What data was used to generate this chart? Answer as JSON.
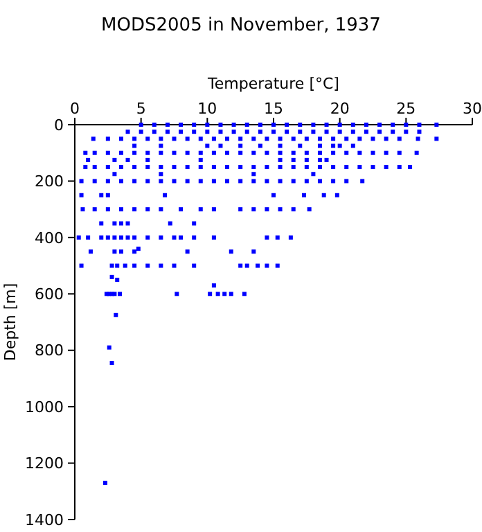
{
  "chart_data": {
    "type": "scatter",
    "title": "MODS2005 in November, 1937",
    "xlabel": "Temperature [°C]",
    "ylabel": "Depth [m]",
    "xlim": [
      0,
      30
    ],
    "xticks": [
      0,
      5,
      10,
      15,
      20,
      25,
      30
    ],
    "ylim": [
      1400,
      0
    ],
    "yticks": [
      0,
      200,
      400,
      600,
      800,
      1000,
      1200,
      1400
    ],
    "grid": false,
    "marker": "square",
    "series": [
      {
        "color": "#0000ff",
        "x": [
          5,
          6,
          7,
          8,
          9,
          10,
          11,
          12,
          13,
          14,
          15,
          16,
          17,
          18,
          19,
          20,
          21,
          22,
          23,
          24,
          25,
          26,
          27.3,
          4,
          5,
          6,
          7,
          8,
          9,
          10,
          11,
          12,
          13,
          14,
          15,
          16,
          17,
          18,
          19,
          20,
          21,
          22,
          23,
          24,
          25,
          26,
          1.4,
          2.5,
          3.5,
          4.5,
          5.5,
          6.5,
          7.5,
          8.5,
          9.5,
          10.5,
          11.5,
          12.5,
          13.5,
          14.5,
          15.5,
          16.5,
          17.5,
          18.5,
          19.5,
          20.5,
          21.5,
          22.5,
          23.5,
          24.5,
          25.9,
          27.3,
          4.5,
          6.5,
          10,
          11,
          12.5,
          14,
          15.5,
          17,
          18.5,
          19.5,
          20,
          21,
          0.8,
          1.5,
          2.5,
          3.5,
          4.5,
          5.5,
          6.5,
          7.5,
          8.5,
          9.5,
          10.5,
          11.5,
          12.5,
          13.5,
          14.5,
          15.5,
          16.5,
          17.5,
          18.5,
          19.5,
          20.5,
          21.5,
          22.5,
          23.5,
          24.5,
          25.8,
          1,
          3,
          4,
          5.5,
          9.5,
          15.5,
          16.5,
          17.5,
          18.5,
          19,
          0.8,
          1.5,
          2.5,
          3.5,
          4.5,
          5.5,
          6.5,
          7.5,
          8.5,
          9.5,
          10.5,
          11.5,
          12.5,
          13.5,
          14.5,
          15.5,
          16.5,
          17.5,
          18.5,
          19.5,
          20.5,
          21.5,
          22.5,
          23.5,
          24.5,
          25.3,
          3,
          6.5,
          13.5,
          18,
          0.5,
          1.5,
          2.5,
          3.5,
          4.5,
          5.5,
          6.5,
          7.5,
          8.5,
          9.5,
          10.5,
          11.5,
          12.5,
          13.5,
          14.5,
          15.5,
          16.5,
          17.5,
          18.5,
          19.5,
          20.5,
          21.7,
          0.5,
          2,
          2.5,
          6.8,
          15,
          17.3,
          18.8,
          19.8,
          0.6,
          1.5,
          2.5,
          3.5,
          4.5,
          5.5,
          6.5,
          8,
          9.5,
          10.5,
          12.5,
          13.5,
          14.5,
          15.5,
          16.5,
          17.7,
          2,
          3,
          3.5,
          4,
          7.2,
          9,
          0.3,
          1,
          2,
          2.5,
          3,
          3.5,
          4,
          4.5,
          5.5,
          6.5,
          7.5,
          8,
          9,
          10.5,
          14.5,
          15.3,
          16.3,
          1.2,
          3,
          3.5,
          4.5,
          8.5,
          11.8,
          13.5,
          0.5,
          2.8,
          3.2,
          3.8,
          4.5,
          5.5,
          6.5,
          7.5,
          9,
          12.5,
          13,
          13.8,
          14.5,
          15.3,
          2.8,
          3.2,
          4.8,
          10.5,
          2.4,
          2.6,
          2.8,
          3,
          3.4,
          7.7,
          10.2,
          10.8,
          11.3,
          11.8,
          12.8,
          3.1,
          2.6,
          2.8,
          2.3
        ],
        "values": [
          0,
          0,
          0,
          0,
          0,
          0,
          0,
          0,
          0,
          0,
          0,
          0,
          0,
          0,
          0,
          0,
          0,
          0,
          0,
          0,
          0,
          0,
          0,
          25,
          25,
          25,
          25,
          25,
          25,
          25,
          25,
          25,
          25,
          25,
          25,
          25,
          25,
          25,
          25,
          25,
          25,
          25,
          25,
          25,
          25,
          25,
          50,
          50,
          50,
          50,
          50,
          50,
          50,
          50,
          50,
          50,
          50,
          50,
          50,
          50,
          50,
          50,
          50,
          50,
          50,
          50,
          50,
          50,
          50,
          50,
          50,
          50,
          75,
          75,
          75,
          75,
          75,
          75,
          75,
          75,
          75,
          75,
          75,
          75,
          100,
          100,
          100,
          100,
          100,
          100,
          100,
          100,
          100,
          100,
          100,
          100,
          100,
          100,
          100,
          100,
          100,
          100,
          100,
          100,
          100,
          100,
          100,
          100,
          100,
          100,
          125,
          125,
          125,
          125,
          125,
          125,
          125,
          125,
          125,
          125,
          150,
          150,
          150,
          150,
          150,
          150,
          150,
          150,
          150,
          150,
          150,
          150,
          150,
          150,
          150,
          150,
          150,
          150,
          150,
          150,
          150,
          150,
          150,
          150,
          150,
          150,
          175,
          175,
          175,
          175,
          200,
          200,
          200,
          200,
          200,
          200,
          200,
          200,
          200,
          200,
          200,
          200,
          200,
          200,
          200,
          200,
          200,
          200,
          200,
          200,
          200,
          200,
          250,
          250,
          250,
          250,
          250,
          250,
          250,
          250,
          300,
          300,
          300,
          300,
          300,
          300,
          300,
          300,
          300,
          300,
          300,
          300,
          300,
          300,
          300,
          300,
          350,
          350,
          350,
          350,
          350,
          350,
          400,
          400,
          400,
          400,
          400,
          400,
          400,
          400,
          400,
          400,
          400,
          400,
          400,
          400,
          400,
          400,
          400,
          450,
          450,
          450,
          450,
          450,
          450,
          450,
          500,
          500,
          500,
          500,
          500,
          500,
          500,
          500,
          500,
          500,
          500,
          500,
          500,
          500,
          540,
          550,
          440,
          570,
          600,
          600,
          600,
          600,
          600,
          600,
          600,
          600,
          600,
          600,
          600,
          675,
          790,
          845,
          1270
        ]
      }
    ]
  }
}
